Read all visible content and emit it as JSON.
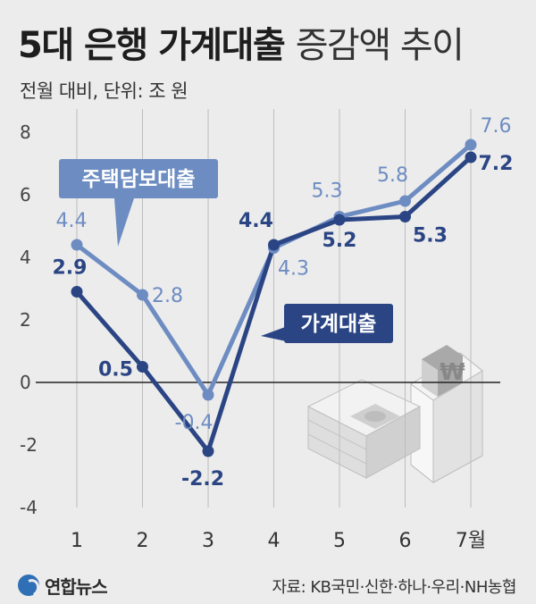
{
  "header": {
    "title_bold": "5대 은행 가계대출",
    "title_light": "증감액 추이",
    "subtitle": "전월 대비, 단위: 조 원"
  },
  "footer": {
    "logo_text": "연합뉴스",
    "source": "자료: KB국민·신한·하나·우리·NH농협"
  },
  "colors": {
    "mortgage": "#6d8cc2",
    "household": "#2b4584",
    "grid": "#bdbdbd",
    "zero_line": "#222222"
  },
  "chart_data": {
    "type": "line",
    "categories": [
      "1",
      "2",
      "3",
      "4",
      "5",
      "6",
      "7월"
    ],
    "yticks": [
      "8",
      "6",
      "4",
      "2",
      "0",
      "-2",
      "-4"
    ],
    "ylim": [
      -4,
      8
    ],
    "grid": "vertical",
    "series": [
      {
        "name": "주택담보대출",
        "values": [
          4.4,
          2.8,
          -0.4,
          4.3,
          5.3,
          5.8,
          7.6
        ],
        "labels": [
          "4.4",
          "2.8",
          "-0.4",
          "4.3",
          "5.3",
          "5.8",
          "7.6"
        ]
      },
      {
        "name": "가계대출",
        "values": [
          2.9,
          0.5,
          -2.2,
          4.4,
          5.2,
          5.3,
          7.2
        ],
        "labels": [
          "2.9",
          "0.5",
          "-2.2",
          "4.4",
          "5.2",
          "5.3",
          "7.2"
        ]
      }
    ]
  }
}
